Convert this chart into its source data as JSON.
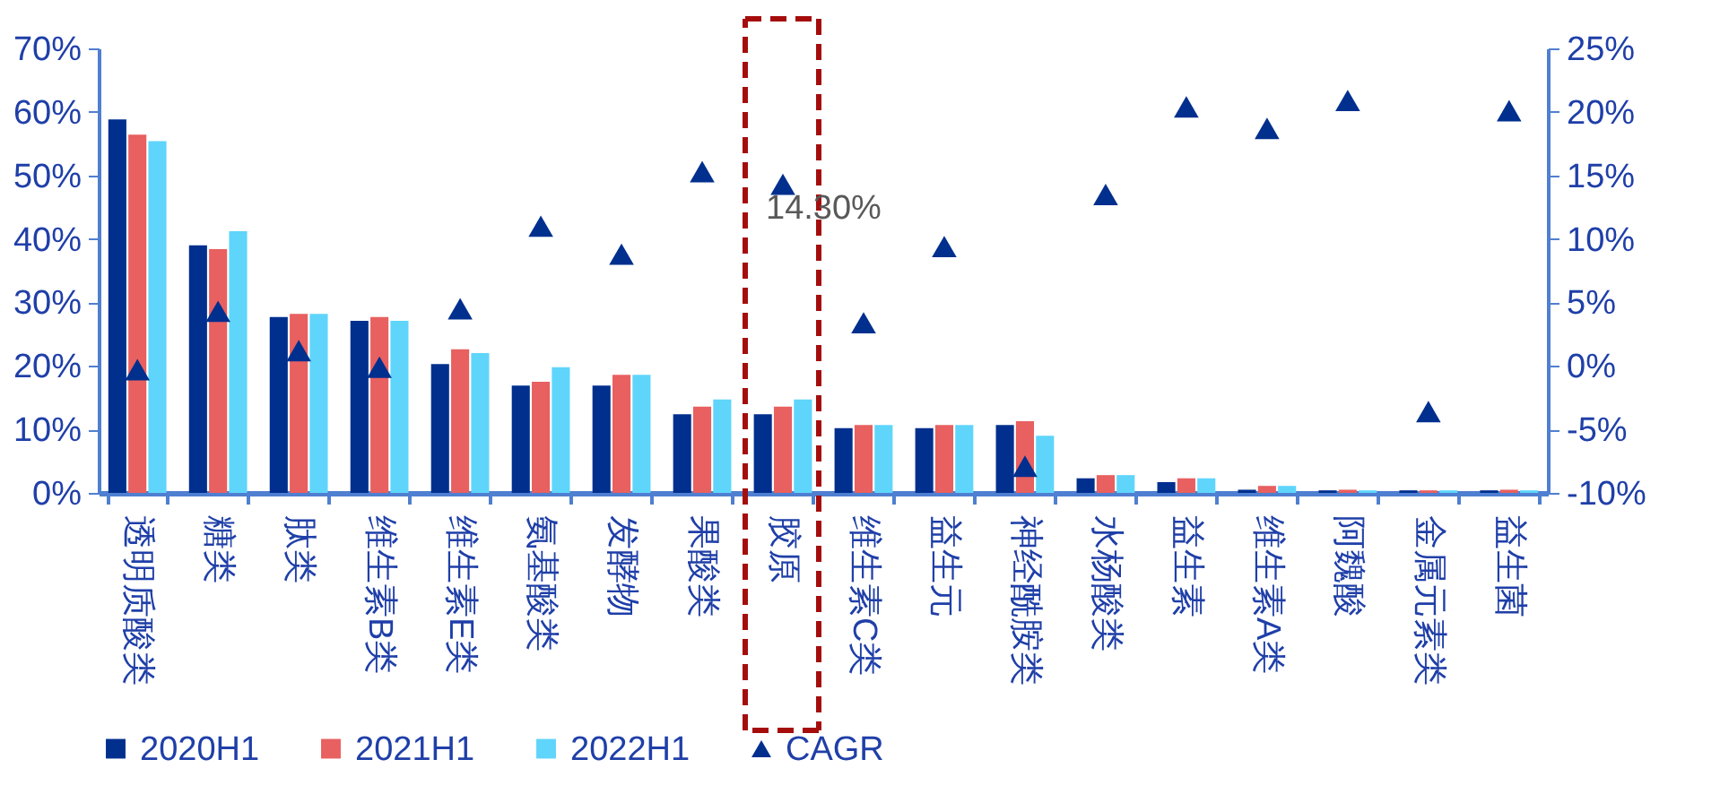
{
  "chart_data": {
    "type": "bar",
    "categories": [
      "透明质酸类",
      "糖类",
      "肽类",
      "维生素B类",
      "维生素E类",
      "氨基酸类",
      "发酵物",
      "果酸类",
      "胶原",
      "维生素C类",
      "益生元",
      "神经酰胺类",
      "水杨酸类",
      "益生素",
      "维生素A类",
      "阿魏酸",
      "金属元素类",
      "益生菌"
    ],
    "series": [
      {
        "name": "2020H1",
        "color": "#002f8e",
        "values": [
          58.8,
          39.0,
          27.7,
          27.1,
          20.3,
          16.9,
          16.9,
          12.4,
          12.4,
          10.2,
          10.2,
          10.7,
          2.3,
          1.7,
          0.5,
          0.4,
          0.4,
          0.4
        ]
      },
      {
        "name": "2021H1",
        "color": "#e86060",
        "values": [
          56.4,
          38.4,
          28.2,
          27.7,
          22.6,
          17.5,
          18.6,
          13.6,
          13.6,
          10.7,
          10.7,
          11.3,
          2.8,
          2.3,
          1.1,
          0.5,
          0.4,
          0.5
        ]
      },
      {
        "name": "2022H1",
        "color": "#5fd5fb",
        "values": [
          55.4,
          41.2,
          28.2,
          27.1,
          22.0,
          19.8,
          18.6,
          14.7,
          14.7,
          10.7,
          10.7,
          9.0,
          2.8,
          2.3,
          1.1,
          0.4,
          0.4,
          0.4
        ]
      },
      {
        "name": "CAGR",
        "type": "scatter",
        "axis": "y2",
        "color": "#002f8e",
        "marker": "triangle",
        "values": [
          -0.3,
          4.3,
          1.2,
          -0.1,
          4.5,
          11.0,
          8.8,
          15.3,
          14.3,
          3.4,
          9.4,
          -7.9,
          13.5,
          20.4,
          18.7,
          20.9,
          -3.6,
          20.1
        ]
      }
    ],
    "ylim": [
      0,
      70
    ],
    "yticks": [
      {
        "value": 0,
        "label": "0%"
      },
      {
        "value": 10,
        "label": "10%"
      },
      {
        "value": 20,
        "label": "20%"
      },
      {
        "value": 30,
        "label": "30%"
      },
      {
        "value": 40,
        "label": "40%"
      },
      {
        "value": 50,
        "label": "50%"
      },
      {
        "value": 60,
        "label": "60%"
      },
      {
        "value": 70,
        "label": "70%"
      }
    ],
    "y2lim": [
      -10,
      25
    ],
    "y2ticks": [
      {
        "value": -10,
        "label": "-10%"
      },
      {
        "value": -5,
        "label": "-5%"
      },
      {
        "value": 0,
        "label": "0%"
      },
      {
        "value": 5,
        "label": "5%"
      },
      {
        "value": 10,
        "label": "10%"
      },
      {
        "value": 15,
        "label": "15%"
      },
      {
        "value": 20,
        "label": "20%"
      },
      {
        "value": 25,
        "label": "25%"
      }
    ],
    "annotations": [
      "14.30%"
    ],
    "grid": false,
    "legend": "bottom"
  }
}
